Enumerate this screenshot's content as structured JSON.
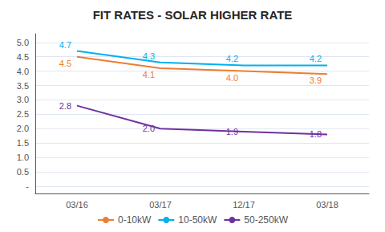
{
  "chart_data": {
    "type": "line",
    "title": "FIT RATES - SOLAR HIGHER RATE",
    "categories": [
      "03/16",
      "03/17",
      "12/17",
      "03/18"
    ],
    "series": [
      {
        "name": "0-10kW",
        "color": "#ED7D31",
        "values": [
          4.5,
          4.1,
          4.0,
          3.9
        ],
        "value_labels": [
          "4.5",
          "4.1",
          "4.0",
          "3.9"
        ]
      },
      {
        "name": "10-50kW",
        "color": "#00B0F0",
        "values": [
          4.7,
          4.3,
          4.2,
          4.2
        ],
        "value_labels": [
          "4.7",
          "4.3",
          "4.2",
          "4.2"
        ]
      },
      {
        "name": "50-250kW",
        "color": "#7030A0",
        "values": [
          2.8,
          2.0,
          1.9,
          1.8
        ],
        "value_labels": [
          "2.8",
          "2.0",
          "1.9",
          "1.8"
        ]
      }
    ],
    "ylim": [
      -0.25,
      5.3
    ],
    "yticks": [
      {
        "value": 0,
        "label": "-"
      },
      0.5,
      {
        "value": 1,
        "label": "1.0"
      },
      1.5,
      {
        "value": 2,
        "label": "2.0"
      },
      2.5,
      {
        "value": 3,
        "label": "3.0"
      },
      3.5,
      {
        "value": 4,
        "label": "4.0"
      },
      4.5,
      {
        "value": 5,
        "label": "5.0"
      }
    ],
    "grid": true,
    "legend": "bottom",
    "data_labels": true
  }
}
